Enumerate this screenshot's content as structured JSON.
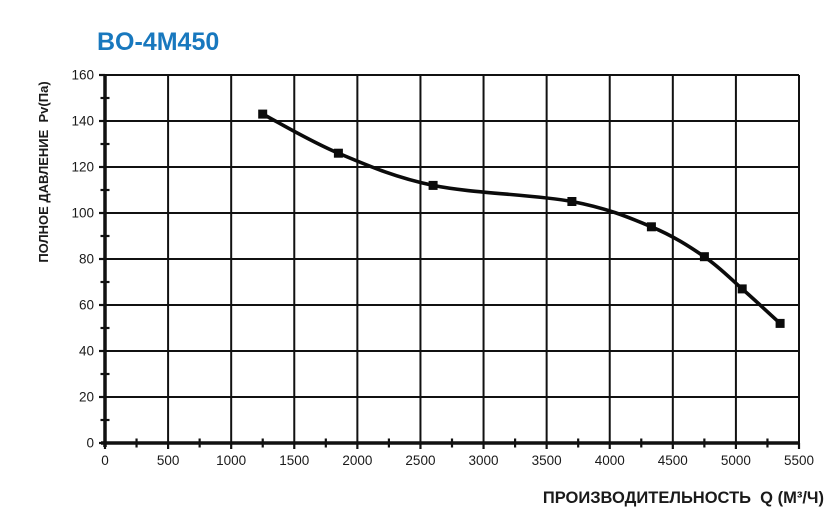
{
  "page": {
    "background": "#ffffff"
  },
  "header": {
    "title": "BO-4M450",
    "title_color": "#1878be"
  },
  "chart_data": {
    "type": "line",
    "title": "BO-4M450",
    "xlabel": "ПРОИЗВОДИТЕЛЬНОСТЬ  Q (М³/Ч)",
    "ylabel": "ПОЛНОЕ ДАВЛЕНИЕ  Pv(Па)",
    "xlim": [
      0,
      5500
    ],
    "ylim": [
      0,
      160
    ],
    "x_ticks": [
      0,
      500,
      1000,
      1500,
      2000,
      2500,
      3000,
      3500,
      4000,
      4500,
      5000,
      5500
    ],
    "y_ticks": [
      0,
      20,
      40,
      60,
      80,
      100,
      120,
      140,
      160
    ],
    "x_minor_step": 250,
    "y_minor_step": 10,
    "grid": true,
    "legend": "none",
    "line_color": "#0b0b0b",
    "grid_color": "#111111",
    "marker": "square",
    "series": [
      {
        "name": "BO-4M450",
        "points": [
          [
            1250,
            143
          ],
          [
            1850,
            126
          ],
          [
            2600,
            112
          ],
          [
            3700,
            105
          ],
          [
            4330,
            94
          ],
          [
            4750,
            81
          ],
          [
            5050,
            67
          ],
          [
            5350,
            52
          ]
        ]
      }
    ]
  }
}
